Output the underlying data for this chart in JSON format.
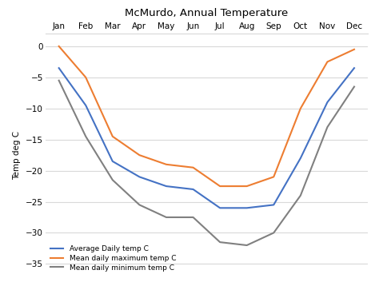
{
  "title": "McMurdo, Annual Temperature",
  "months": [
    "Jan",
    "Feb",
    "Mar",
    "Apr",
    "May",
    "Jun",
    "Jul",
    "Aug",
    "Sep",
    "Oct",
    "Nov",
    "Dec"
  ],
  "avg_daily": [
    -3.5,
    -9.5,
    -18.5,
    -21.0,
    -22.5,
    -23.0,
    -26.0,
    -26.0,
    -25.5,
    -18.0,
    -9.0,
    -3.5
  ],
  "mean_max": [
    0.0,
    -5.0,
    -14.5,
    -17.5,
    -19.0,
    -19.5,
    -22.5,
    -22.5,
    -21.0,
    -10.0,
    -2.5,
    -0.5
  ],
  "mean_min": [
    -5.5,
    -14.5,
    -21.5,
    -25.5,
    -27.5,
    -27.5,
    -31.5,
    -32.0,
    -30.0,
    -24.0,
    -13.0,
    -6.5
  ],
  "avg_color": "#4472c4",
  "max_color": "#ed7d31",
  "min_color": "#808080",
  "ylabel": "Temp deg C",
  "ylim": [
    -37,
    2
  ],
  "yticks": [
    0,
    -5,
    -10,
    -15,
    -20,
    -25,
    -30,
    -35
  ],
  "legend_labels": [
    "Average Daily temp C",
    "Mean daily maximum temp C",
    "Mean daily minimum temp C"
  ],
  "bg_color": "#ffffff",
  "grid_color": "#d9d9d9",
  "title_fontsize": 9.5,
  "label_fontsize": 7.5,
  "tick_fontsize": 7.5,
  "legend_fontsize": 6.5
}
